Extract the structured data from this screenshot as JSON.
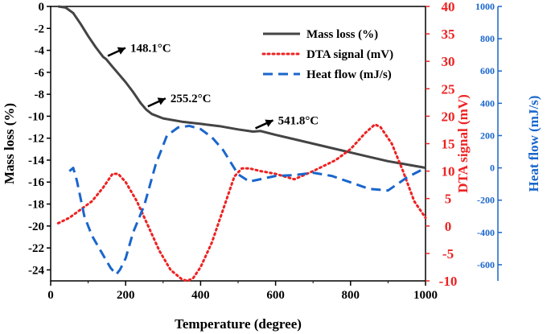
{
  "chart_data": {
    "type": "line",
    "title": "",
    "xlabel": "Temperature (degree)",
    "xlim": [
      0,
      1000
    ],
    "x_ticks": [
      0,
      200,
      400,
      600,
      800,
      1000
    ],
    "y_axes": [
      {
        "id": "left",
        "label": "Mass loss (%)",
        "range": [
          -25,
          0
        ],
        "ticks": [
          0,
          -2,
          -4,
          -6,
          -8,
          -10,
          -12,
          -14,
          -16,
          -18,
          -20,
          -22,
          -24
        ],
        "color": "#000000"
      },
      {
        "id": "right1",
        "label": "DTA signal (mV)",
        "range": [
          -10,
          40
        ],
        "ticks": [
          -10,
          -5,
          0,
          5,
          10,
          15,
          20,
          25,
          30,
          35,
          40
        ],
        "color": "#ee2222"
      },
      {
        "id": "right2",
        "label": "Heat flow (mJ/s)",
        "range": [
          -700,
          1000
        ],
        "ticks": [
          -600,
          -400,
          -200,
          0,
          200,
          400,
          600,
          800,
          1000
        ],
        "color": "#1a66cc"
      }
    ],
    "legend": {
      "position": "top-right",
      "entries": [
        {
          "label": "Mass loss (%)",
          "color": "#444444",
          "style": "solid"
        },
        {
          "label": "DTA signal (mV)",
          "color": "#ee2222",
          "style": "dotted"
        },
        {
          "label": "Heat flow (mJ/s)",
          "color": "#1a66cc",
          "style": "dashed"
        }
      ]
    },
    "series": [
      {
        "name": "Mass loss (%)",
        "axis": "left",
        "color": "#444444",
        "style": "solid",
        "x": [
          20,
          40,
          60,
          80,
          100,
          120,
          140,
          148,
          160,
          180,
          200,
          220,
          240,
          255,
          270,
          300,
          350,
          400,
          450,
          500,
          540,
          560,
          600,
          650,
          700,
          750,
          800,
          850,
          900,
          950,
          1000
        ],
        "y": [
          0,
          -0.1,
          -0.6,
          -1.6,
          -2.7,
          -3.7,
          -4.6,
          -4.8,
          -5.3,
          -6.1,
          -6.9,
          -7.8,
          -8.8,
          -9.4,
          -9.8,
          -10.2,
          -10.5,
          -10.7,
          -10.9,
          -11.2,
          -11.4,
          -11.35,
          -11.7,
          -12.1,
          -12.5,
          -12.9,
          -13.3,
          -13.7,
          -14.1,
          -14.4,
          -14.7
        ]
      },
      {
        "name": "DTA signal (mV)",
        "axis": "right1",
        "color": "#ee2222",
        "style": "dotted",
        "x": [
          20,
          50,
          80,
          110,
          140,
          165,
          180,
          200,
          230,
          260,
          290,
          320,
          350,
          365,
          380,
          400,
          430,
          460,
          490,
          510,
          530,
          560,
          600,
          650,
          700,
          760,
          800,
          840,
          865,
          880,
          910,
          940,
          970,
          1000
        ],
        "y": [
          0.5,
          1.5,
          3,
          4.5,
          7,
          9.5,
          9.5,
          8,
          4.5,
          0,
          -4.5,
          -8,
          -9.7,
          -10,
          -9.5,
          -7.5,
          -3,
          3,
          9,
          10.5,
          10.5,
          10,
          9.5,
          8.5,
          10,
          12,
          14,
          17,
          18.5,
          18,
          15,
          10,
          4.5,
          1.5
        ]
      },
      {
        "name": "Heat flow (mJ/s)",
        "axis": "right2",
        "color": "#1a66cc",
        "style": "dashed",
        "x": [
          50,
          60,
          70,
          90,
          110,
          140,
          160,
          175,
          185,
          200,
          220,
          250,
          280,
          310,
          340,
          370,
          400,
          430,
          460,
          500,
          530,
          560,
          600,
          650,
          700,
          750,
          800,
          850,
          900,
          950,
          1000
        ],
        "y": [
          -20,
          0,
          -80,
          -300,
          -420,
          -540,
          -620,
          -660,
          -630,
          -560,
          -400,
          -230,
          20,
          200,
          250,
          260,
          240,
          190,
          110,
          -40,
          -85,
          -70,
          -50,
          -45,
          -30,
          -50,
          -90,
          -130,
          -140,
          -60,
          0
        ]
      }
    ],
    "annotations": [
      {
        "label": "148.1°C",
        "x": 148,
        "y_axis": "left"
      },
      {
        "label": "255.2°C",
        "x": 255,
        "y_axis": "left"
      },
      {
        "label": "541.8°C",
        "x": 542,
        "y_axis": "left"
      }
    ]
  }
}
